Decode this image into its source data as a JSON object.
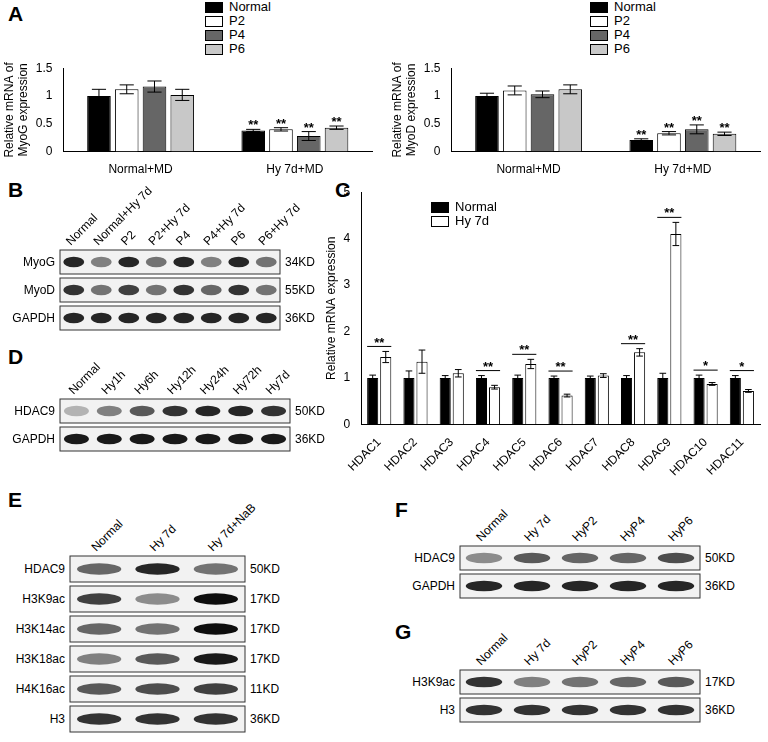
{
  "chart_data": [
    {
      "type": "bar",
      "ylabel": [
        "Relative mRNA of",
        "MyoG expression"
      ],
      "categories": [
        "Normal+MD",
        "Hy 7d+MD"
      ],
      "series": [
        {
          "name": "Normal",
          "color": "#000000",
          "values": [
            1.0,
            0.38
          ],
          "errors": [
            0.12,
            0.02
          ]
        },
        {
          "name": "P2",
          "color": "#ffffff",
          "values": [
            1.12,
            0.4
          ],
          "errors": [
            0.08,
            0.03
          ]
        },
        {
          "name": "P4",
          "color": "#666666",
          "values": [
            1.17,
            0.28
          ],
          "errors": [
            0.1,
            0.08
          ]
        },
        {
          "name": "P6",
          "color": "#c8c8c8",
          "values": [
            1.02,
            0.43
          ],
          "errors": [
            0.1,
            0.03
          ]
        }
      ],
      "ylim": [
        0,
        1.5
      ],
      "yticks": [
        0,
        0.5,
        1,
        1.5
      ],
      "grid": false,
      "legend": "top",
      "annotations": [
        {
          "category": "Hy 7d+MD",
          "series": "Normal",
          "text": "**"
        },
        {
          "category": "Hy 7d+MD",
          "series": "P2",
          "text": "**"
        },
        {
          "category": "Hy 7d+MD",
          "series": "P4",
          "text": "**"
        },
        {
          "category": "Hy 7d+MD",
          "series": "P6",
          "text": "**"
        }
      ]
    },
    {
      "type": "bar",
      "ylabel": [
        "Relative mRNA of",
        "MyoD expression"
      ],
      "categories": [
        "Normal+MD",
        "Hy 7d+MD"
      ],
      "series": [
        {
          "name": "Normal",
          "color": "#000000",
          "values": [
            1.0,
            0.21
          ],
          "errors": [
            0.05,
            0.02
          ]
        },
        {
          "name": "P2",
          "color": "#ffffff",
          "values": [
            1.1,
            0.33
          ],
          "errors": [
            0.08,
            0.03
          ]
        },
        {
          "name": "P4",
          "color": "#666666",
          "values": [
            1.03,
            0.4
          ],
          "errors": [
            0.06,
            0.08
          ]
        },
        {
          "name": "P6",
          "color": "#c8c8c8",
          "values": [
            1.12,
            0.32
          ],
          "errors": [
            0.08,
            0.03
          ]
        }
      ],
      "ylim": [
        0,
        1.5
      ],
      "yticks": [
        0,
        0.5,
        1,
        1.5
      ],
      "grid": false,
      "legend": "top",
      "annotations": [
        {
          "category": "Hy 7d+MD",
          "series": "Normal",
          "text": "**"
        },
        {
          "category": "Hy 7d+MD",
          "series": "P2",
          "text": "**"
        },
        {
          "category": "Hy 7d+MD",
          "series": "P4",
          "text": "**"
        },
        {
          "category": "Hy 7d+MD",
          "series": "P6",
          "text": "**"
        }
      ]
    },
    {
      "type": "bar",
      "ylabel": "Relative mRNA expression",
      "categories": [
        "HDAC1",
        "HDAC2",
        "HDAC3",
        "HDAC4",
        "HDAC5",
        "HDAC6",
        "HDAC7",
        "HDAC8",
        "HDAC9",
        "HDAC10",
        "HDAC11"
      ],
      "series": [
        {
          "name": "Normal",
          "color": "#000000",
          "values": [
            1.0,
            1.0,
            1.0,
            1.0,
            1.0,
            1.0,
            1.0,
            1.0,
            1.0,
            1.0,
            1.0
          ],
          "errors": [
            0.06,
            0.15,
            0.05,
            0.05,
            0.06,
            0.04,
            0.04,
            0.05,
            0.1,
            0.06,
            0.05
          ]
        },
        {
          "name": "Hy 7d",
          "color": "#ffffff",
          "values": [
            1.45,
            1.35,
            1.1,
            0.8,
            1.3,
            0.62,
            1.05,
            1.55,
            4.1,
            0.87,
            0.72
          ],
          "errors": [
            0.12,
            0.25,
            0.08,
            0.04,
            0.1,
            0.03,
            0.04,
            0.08,
            0.25,
            0.03,
            0.03
          ]
        }
      ],
      "ylim": [
        0,
        5
      ],
      "yticks": [
        0,
        1,
        2,
        3,
        4,
        5
      ],
      "grid": false,
      "legend": "top-left",
      "annotations": [
        {
          "category": "HDAC1",
          "text": "**"
        },
        {
          "category": "HDAC4",
          "text": "**"
        },
        {
          "category": "HDAC5",
          "text": "**"
        },
        {
          "category": "HDAC6",
          "text": "**"
        },
        {
          "category": "HDAC8",
          "text": "**"
        },
        {
          "category": "HDAC9",
          "text": "**"
        },
        {
          "category": "HDAC10",
          "text": "*"
        },
        {
          "category": "HDAC11",
          "text": "*"
        }
      ]
    }
  ],
  "panel_labels": [
    "A",
    "B",
    "C",
    "D",
    "E",
    "F",
    "G"
  ],
  "blots": [
    {
      "lanes": [
        "Normal",
        "Normal+Hy 7d",
        "P2",
        "P2+Hy 7d",
        "P4",
        "P4+Hy 7d",
        "P6",
        "P6+Hy 7d"
      ],
      "rows": [
        {
          "name": "MyoG",
          "size": "34KD",
          "intensity": [
            0.85,
            0.5,
            0.85,
            0.55,
            0.85,
            0.5,
            0.85,
            0.55
          ]
        },
        {
          "name": "MyoD",
          "size": "55KD",
          "intensity": [
            0.8,
            0.55,
            0.75,
            0.55,
            0.8,
            0.6,
            0.8,
            0.55
          ]
        },
        {
          "name": "GAPDH",
          "size": "36KD",
          "intensity": [
            0.85,
            0.85,
            0.85,
            0.85,
            0.85,
            0.85,
            0.85,
            0.85
          ]
        }
      ]
    },
    {
      "lanes": [
        "Normal",
        "Hy1h",
        "Hy6h",
        "Hy12h",
        "Hy24h",
        "Hy72h",
        "Hy7d"
      ],
      "rows": [
        {
          "name": "HDAC9",
          "size": "50KD",
          "intensity": [
            0.3,
            0.5,
            0.65,
            0.8,
            0.85,
            0.85,
            0.8
          ]
        },
        {
          "name": "GAPDH",
          "size": "36KD",
          "intensity": [
            0.9,
            0.9,
            0.9,
            0.9,
            0.9,
            0.9,
            0.9
          ]
        }
      ]
    },
    {
      "lanes": [
        "Normal",
        "Hy 7d",
        "Hy 7d+NaB"
      ],
      "rows": [
        {
          "name": "HDAC9",
          "size": "50KD",
          "intensity": [
            0.6,
            0.85,
            0.55
          ]
        },
        {
          "name": "H3K9ac",
          "size": "17KD",
          "intensity": [
            0.75,
            0.45,
            0.95
          ]
        },
        {
          "name": "H3K14ac",
          "size": "17KD",
          "intensity": [
            0.6,
            0.55,
            0.95
          ]
        },
        {
          "name": "H3K18ac",
          "size": "17KD",
          "intensity": [
            0.5,
            0.65,
            0.9
          ]
        },
        {
          "name": "H4K16ac",
          "size": "11KD",
          "intensity": [
            0.65,
            0.7,
            0.75
          ]
        },
        {
          "name": "H3",
          "size": "36KD",
          "intensity": [
            0.8,
            0.8,
            0.8
          ]
        }
      ]
    },
    {
      "lanes": [
        "Normal",
        "Hy 7d",
        "HyP2",
        "HyP4",
        "HyP6"
      ],
      "rows": [
        {
          "name": "HDAC9",
          "size": "50KD",
          "intensity": [
            0.45,
            0.65,
            0.6,
            0.6,
            0.7
          ]
        },
        {
          "name": "GAPDH",
          "size": "36KD",
          "intensity": [
            0.85,
            0.85,
            0.85,
            0.85,
            0.85
          ]
        }
      ]
    },
    {
      "lanes": [
        "Normal",
        "Hy 7d",
        "HyP2",
        "HyP4",
        "HyP6"
      ],
      "rows": [
        {
          "name": "H3K9ac",
          "size": "17KD",
          "intensity": [
            0.8,
            0.5,
            0.55,
            0.6,
            0.65
          ]
        },
        {
          "name": "H3",
          "size": "36KD",
          "intensity": [
            0.8,
            0.8,
            0.8,
            0.8,
            0.8
          ]
        }
      ]
    }
  ]
}
